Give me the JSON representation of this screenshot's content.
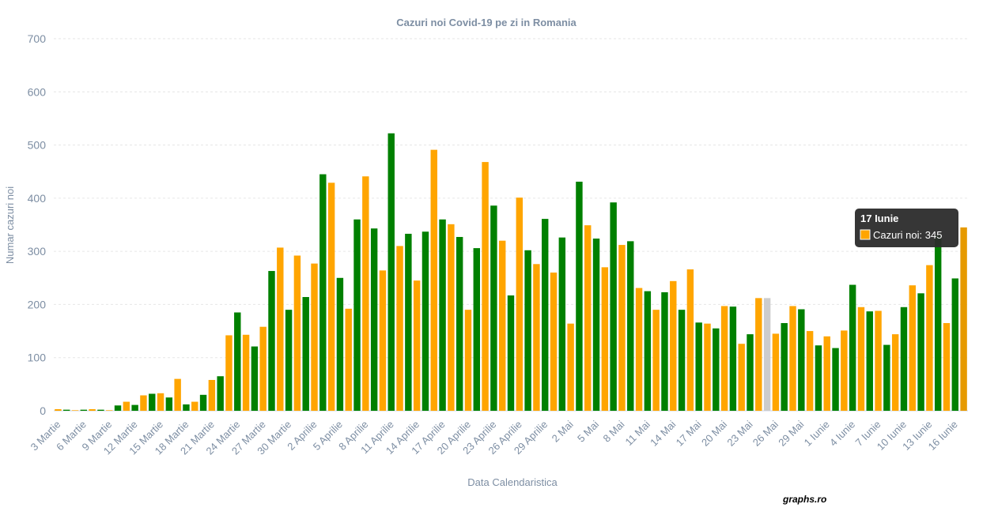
{
  "chart_data": {
    "type": "bar",
    "title": "Cazuri noi Covid-19 pe zi in Romania",
    "xlabel": "Data Calendaristica",
    "ylabel": "Numar cazuri noi",
    "ylim": [
      0,
      700
    ],
    "yticks": [
      0,
      100,
      200,
      300,
      400,
      500,
      600,
      700
    ],
    "grid": true,
    "colors": {
      "odd": "#FFA500",
      "even": "#008000",
      "missing": "#CCCCCC",
      "highlight": "#E69A00"
    },
    "x_tick_labels": [
      "3 Martie",
      "6 Martie",
      "9 Martie",
      "12 Martie",
      "15 Martie",
      "18 Martie",
      "21 Martie",
      "24 Martie",
      "27 Martie",
      "30 Martie",
      "2 Aprilie",
      "5 Aprilie",
      "8 Aprilie",
      "11 Aprilie",
      "14 Aprilie",
      "17 Aprilie",
      "20 Aprilie",
      "23 Aprilie",
      "26 Aprilie",
      "29 Aprilie",
      "2 Mai",
      "5 Mai",
      "8 Mai",
      "11 Mai",
      "14 Mai",
      "17 Mai",
      "20 Mai",
      "23 Mai",
      "26 Mai",
      "29 Mai",
      "1 Iunie",
      "4 Iunie",
      "7 Iunie",
      "10 Iunie",
      "13 Iunie",
      "16 Iunie"
    ],
    "values": [
      3,
      2,
      1,
      2,
      3,
      2,
      1,
      10,
      17,
      11,
      29,
      32,
      33,
      25,
      60,
      12,
      17,
      30,
      58,
      65,
      142,
      185,
      143,
      121,
      158,
      263,
      307,
      190,
      292,
      214,
      277,
      445,
      429,
      250,
      192,
      360,
      441,
      343,
      264,
      522,
      310,
      333,
      245,
      337,
      491,
      360,
      351,
      327,
      190,
      306,
      468,
      386,
      320,
      217,
      401,
      302,
      276,
      361,
      260,
      326,
      164,
      431,
      349,
      324,
      270,
      392,
      312,
      319,
      231,
      225,
      190,
      223,
      244,
      190,
      266,
      166,
      164,
      155,
      197,
      196,
      126,
      144,
      212,
      212,
      145,
      165,
      197,
      191,
      150,
      123,
      140,
      118,
      151,
      237,
      195,
      187,
      188,
      124,
      144,
      195,
      236,
      221,
      274,
      330,
      165,
      249,
      345
    ],
    "missing_indices": [
      83
    ],
    "tooltip": {
      "index": 106,
      "title": "17 Iunie",
      "label": "Cazuri noi: 345"
    }
  },
  "watermark": "graphs.ro"
}
